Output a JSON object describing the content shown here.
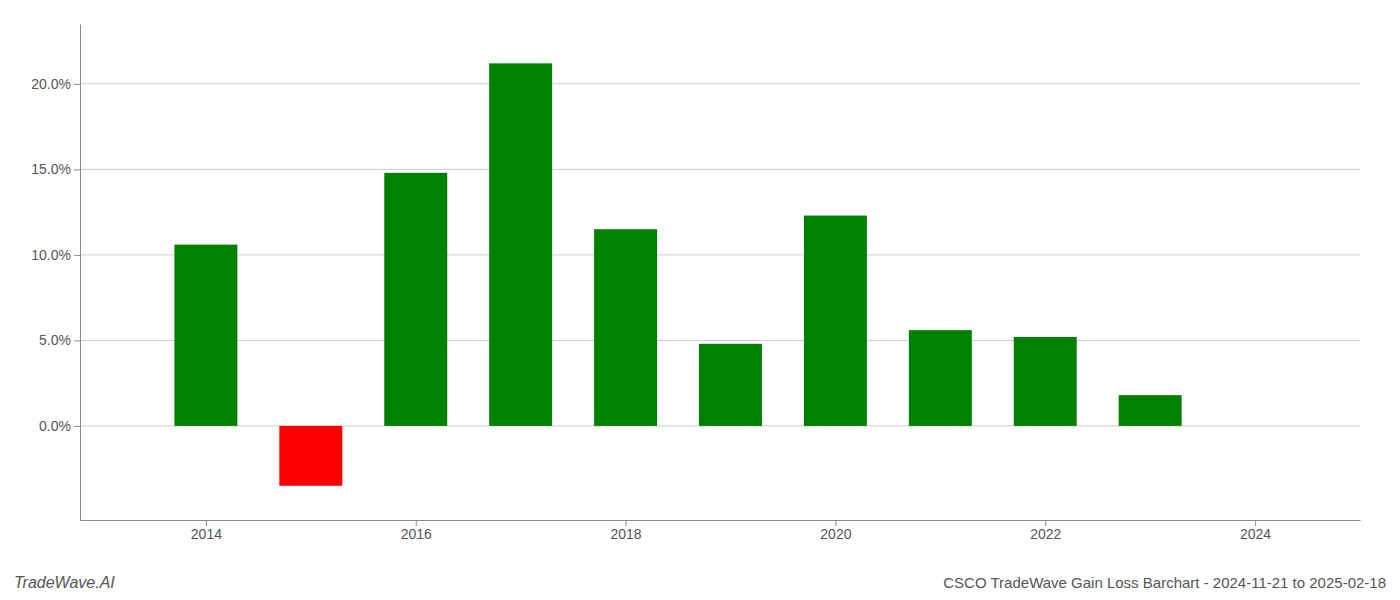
{
  "chart_data": {
    "type": "bar",
    "title": "CSCO TradeWave Gain Loss Barchart - 2024-11-21 to 2025-02-18",
    "annotations": [
      "TradeWave.AI"
    ],
    "x": [
      2014,
      2015,
      2016,
      2017,
      2018,
      2019,
      2020,
      2021,
      2022,
      2023
    ],
    "values": [
      0.106,
      -0.035,
      0.148,
      0.212,
      0.115,
      0.048,
      0.123,
      0.056,
      0.052,
      0.018
    ],
    "colors": [
      "#008000",
      "#ff0000",
      "#008000",
      "#008000",
      "#008000",
      "#008000",
      "#008000",
      "#008000",
      "#008000",
      "#008000"
    ],
    "xlim": [
      2012.8,
      2025.0
    ],
    "xticks": [
      2014,
      2016,
      2018,
      2020,
      2022,
      2024
    ],
    "ylim": [
      -0.055,
      0.235
    ],
    "yticks": [
      {
        "value": 0.0,
        "label": "0.0%"
      },
      {
        "value": 0.05,
        "label": "5.0%"
      },
      {
        "value": 0.1,
        "label": "10.0%"
      },
      {
        "value": 0.15,
        "label": "15.0%"
      },
      {
        "value": 0.2,
        "label": "20.0%"
      }
    ],
    "grid": true
  }
}
